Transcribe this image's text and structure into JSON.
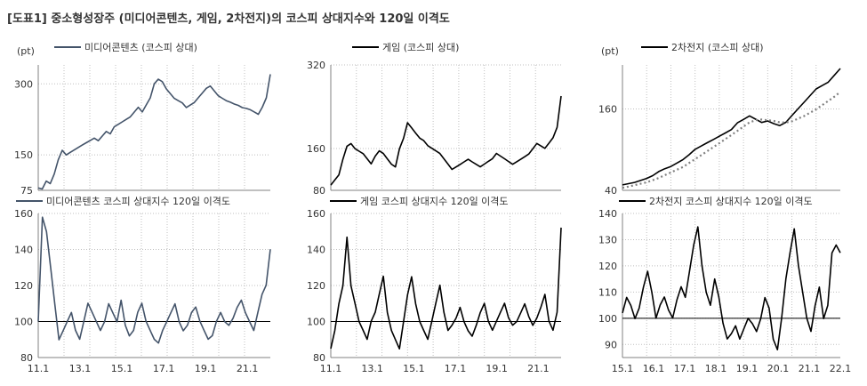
{
  "figure_title": "[도표1] 중소형성장주 (미디어콘텐츠, 게임, 2차전지)의 코스피 상대지수와 120일 이격도",
  "colors": {
    "media": "#44546a",
    "game": "#000000",
    "battery": "#000000",
    "avg": "#808080",
    "grid": "#bfbfbf",
    "axis": "#808080"
  },
  "chart_data": [
    {
      "id": "media-rel",
      "type": "line",
      "unit": "(pt)",
      "ylim": [
        75,
        340
      ],
      "yticks": [
        75,
        150,
        300
      ],
      "series": [
        {
          "name": "미디어콘텐츠 (코스피 상대)",
          "color": "#44546a",
          "values": [
            80,
            78,
            95,
            90,
            110,
            140,
            160,
            150,
            155,
            160,
            165,
            170,
            175,
            180,
            185,
            180,
            190,
            200,
            195,
            210,
            215,
            220,
            225,
            230,
            240,
            250,
            240,
            255,
            270,
            300,
            310,
            305,
            290,
            280,
            270,
            265,
            260,
            250,
            255,
            260,
            270,
            280,
            290,
            295,
            285,
            275,
            270,
            265,
            262,
            258,
            255,
            250,
            248,
            245,
            240,
            235,
            250,
            270,
            320
          ]
        }
      ]
    },
    {
      "id": "game-rel",
      "type": "line",
      "unit": "",
      "ylim": [
        80,
        320
      ],
      "yticks": [
        80,
        160,
        320
      ],
      "series": [
        {
          "name": "게임 (코스피 상대)",
          "color": "#000000",
          "values": [
            90,
            100,
            110,
            140,
            165,
            170,
            160,
            155,
            150,
            140,
            130,
            145,
            155,
            150,
            140,
            130,
            125,
            160,
            180,
            210,
            200,
            190,
            180,
            175,
            165,
            160,
            155,
            150,
            140,
            130,
            120,
            125,
            130,
            135,
            140,
            135,
            130,
            125,
            130,
            135,
            140,
            150,
            145,
            140,
            135,
            130,
            135,
            140,
            145,
            150,
            160,
            170,
            165,
            160,
            170,
            180,
            200,
            260
          ]
        }
      ]
    },
    {
      "id": "battery-rel",
      "type": "line",
      "unit": "(pt)",
      "ylim": [
        40,
        225
      ],
      "yticks": [
        40,
        160
      ],
      "series": [
        {
          "name": "2차전지 (코스피 상대)",
          "color": "#000000",
          "values": [
            48,
            50,
            52,
            55,
            58,
            62,
            68,
            72,
            75,
            80,
            85,
            92,
            100,
            105,
            110,
            115,
            120,
            125,
            130,
            140,
            145,
            150,
            145,
            140,
            142,
            138,
            135,
            140,
            150,
            160,
            170,
            180,
            190,
            195,
            200,
            210,
            220
          ]
        },
        {
          "name": "",
          "color": "#808080",
          "dashed": true,
          "values": [
            44,
            46,
            48,
            50,
            52,
            55,
            58,
            62,
            66,
            70,
            74,
            80,
            86,
            92,
            98,
            104,
            110,
            116,
            122,
            128,
            134,
            140,
            143,
            144,
            143,
            142,
            140,
            140,
            142,
            146,
            150,
            155,
            160,
            166,
            172,
            178,
            185
          ]
        }
      ]
    },
    {
      "id": "media-gap",
      "type": "line",
      "unit": "",
      "ylim": [
        80,
        160
      ],
      "yticks": [
        80,
        100,
        120,
        140,
        160
      ],
      "baseline": 100,
      "xticks": [
        "11.1",
        "13.1",
        "15.1",
        "17.1",
        "19.1",
        "21.1"
      ],
      "series": [
        {
          "name": "미디어콘텐츠 코스피 상대지수 120일 이격도",
          "color": "#44546a",
          "values": [
            100,
            158,
            150,
            130,
            110,
            90,
            95,
            100,
            105,
            95,
            90,
            100,
            110,
            105,
            100,
            95,
            100,
            110,
            105,
            100,
            112,
            98,
            92,
            95,
            105,
            110,
            100,
            95,
            90,
            88,
            95,
            100,
            105,
            110,
            100,
            95,
            98,
            105,
            108,
            100,
            95,
            90,
            92,
            100,
            105,
            100,
            98,
            102,
            108,
            112,
            105,
            100,
            95,
            105,
            115,
            120,
            140
          ]
        }
      ]
    },
    {
      "id": "game-gap",
      "type": "line",
      "unit": "",
      "ylim": [
        80,
        160
      ],
      "yticks": [
        80,
        100,
        120,
        140,
        160
      ],
      "baseline": 100,
      "xticks": [
        "11.1",
        "13.1",
        "15.1",
        "17.1",
        "19.1",
        "21.1"
      ],
      "series": [
        {
          "name": "게임 코스피 상대지수 120일 이격도",
          "color": "#000000",
          "values": [
            85,
            95,
            110,
            120,
            147,
            120,
            110,
            100,
            95,
            90,
            100,
            105,
            115,
            125,
            105,
            95,
            90,
            85,
            100,
            115,
            125,
            110,
            100,
            95,
            90,
            100,
            110,
            120,
            105,
            95,
            98,
            102,
            108,
            100,
            95,
            92,
            98,
            105,
            110,
            100,
            95,
            100,
            105,
            110,
            102,
            98,
            100,
            105,
            110,
            103,
            98,
            102,
            108,
            115,
            100,
            95,
            105,
            152
          ]
        }
      ]
    },
    {
      "id": "battery-gap",
      "type": "line",
      "unit": "",
      "ylim": [
        85,
        140
      ],
      "yticks": [
        90,
        100,
        110,
        120,
        130,
        140
      ],
      "baseline": 100,
      "xticks": [
        "15.1",
        "16.1",
        "17.1",
        "18.1",
        "19.1",
        "20.1",
        "21.1",
        "22.1"
      ],
      "series": [
        {
          "name": "2차전지 코스피 상대지수 120일 이격도",
          "color": "#000000",
          "values": [
            102,
            108,
            105,
            100,
            104,
            112,
            118,
            110,
            100,
            105,
            108,
            103,
            100,
            107,
            112,
            108,
            118,
            128,
            135,
            120,
            110,
            105,
            115,
            108,
            98,
            92,
            94,
            97,
            92,
            96,
            100,
            98,
            95,
            100,
            108,
            104,
            92,
            88,
            100,
            115,
            125,
            134,
            120,
            110,
            100,
            95,
            105,
            112,
            100,
            105,
            125,
            128,
            125
          ]
        }
      ]
    }
  ]
}
